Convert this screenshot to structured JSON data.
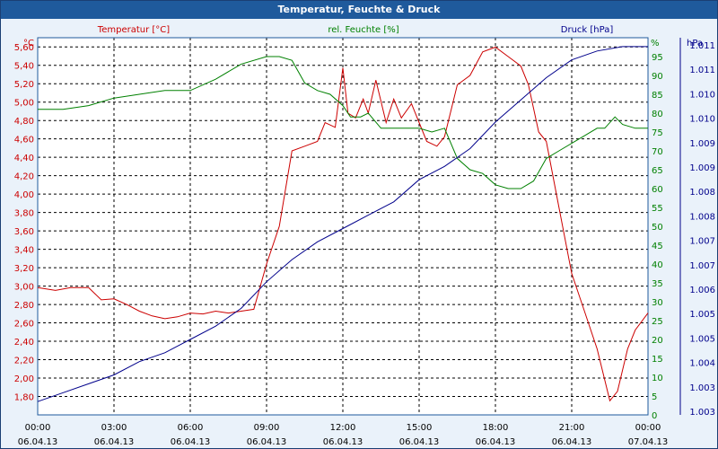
{
  "window": {
    "title": "Temperatur, Feuchte & Druck"
  },
  "chart_data": {
    "type": "line",
    "title": "Temperatur, Feuchte & Druck",
    "colors": {
      "temperature": "#cc0000",
      "humidity": "#008000",
      "pressure": "#00008b",
      "background": "#ffffff",
      "grid": "#000000",
      "frame": "#1f5a9c"
    },
    "grid": "dashed",
    "x_ticks": [
      {
        "time": "00:00",
        "date": "06.04.13"
      },
      {
        "time": "03:00",
        "date": "06.04.13"
      },
      {
        "time": "06:00",
        "date": "06.04.13"
      },
      {
        "time": "09:00",
        "date": "06.04.13"
      },
      {
        "time": "12:00",
        "date": "06.04.13"
      },
      {
        "time": "15:00",
        "date": "06.04.13"
      },
      {
        "time": "18:00",
        "date": "06.04.13"
      },
      {
        "time": "21:00",
        "date": "06.04.13"
      },
      {
        "time": "00:00",
        "date": "07.04.13"
      }
    ],
    "x_range_hours": [
      0,
      24
    ],
    "axes": {
      "temperature": {
        "label": "Temperatur [°C]",
        "unit": "°C",
        "ylim": [
          1.7,
          5.7
        ],
        "ticks": [
          "1,80",
          "2,00",
          "2,20",
          "2,40",
          "2,60",
          "2,80",
          "3,00",
          "3,20",
          "3,40",
          "3,60",
          "3,80",
          "4,00",
          "4,20",
          "4,40",
          "4,60",
          "4,80",
          "5,00",
          "5,20",
          "5,40",
          "5,60"
        ]
      },
      "humidity": {
        "label": "rel. Feuchte [%]",
        "unit": "%",
        "ylim": [
          0,
          100
        ],
        "ticks": [
          "0",
          "5",
          "10",
          "15",
          "20",
          "25",
          "30",
          "35",
          "40",
          "45",
          "50",
          "55",
          "60",
          "65",
          "70",
          "75",
          "80",
          "85",
          "90",
          "95"
        ]
      },
      "pressure": {
        "label": "Druck [hPa]",
        "unit": "hPa",
        "ylim": [
          1.0028,
          1.0113
        ],
        "ticks": [
          "1.003",
          "1.003",
          "1.004",
          "1.005",
          "1.005",
          "1.006",
          "1.007",
          "1.007",
          "1.008",
          "1.008",
          "1.009",
          "1.009",
          "1.010",
          "1.010",
          "1.011",
          "1.011"
        ]
      }
    },
    "series": [
      {
        "name": "Temperatur [°C]",
        "axis": "temperature",
        "x": [
          0,
          0.7,
          1.3,
          2,
          2.5,
          3,
          3.5,
          4,
          4.5,
          5,
          5.5,
          6,
          6.5,
          7,
          7.5,
          8,
          8.5,
          9,
          9.5,
          10,
          10.5,
          11,
          11.3,
          11.7,
          12,
          12.2,
          12.5,
          12.8,
          13,
          13.3,
          13.7,
          14,
          14.3,
          14.7,
          15,
          15.3,
          15.7,
          16,
          16.5,
          17,
          17.5,
          18,
          18.5,
          19,
          19.3,
          19.7,
          20,
          20.5,
          21,
          21.5,
          22,
          22.5,
          22.8,
          23.2,
          23.5,
          24
        ],
        "y": [
          3.05,
          3.02,
          3.05,
          3.05,
          2.92,
          2.93,
          2.87,
          2.8,
          2.75,
          2.72,
          2.74,
          2.78,
          2.77,
          2.8,
          2.78,
          2.8,
          2.82,
          3.3,
          3.7,
          4.5,
          4.55,
          4.6,
          4.8,
          4.75,
          5.38,
          4.9,
          4.85,
          5.05,
          4.9,
          5.25,
          4.8,
          5.05,
          4.85,
          5.0,
          4.8,
          4.6,
          4.55,
          4.65,
          5.2,
          5.3,
          5.55,
          5.6,
          5.5,
          5.4,
          5.2,
          4.7,
          4.6,
          3.9,
          3.2,
          2.8,
          2.4,
          1.85,
          1.95,
          2.4,
          2.6,
          2.78
        ]
      },
      {
        "name": "rel. Feuchte [%]",
        "axis": "humidity",
        "x": [
          0,
          1,
          2,
          3,
          4,
          5,
          6,
          7,
          8,
          9,
          9.5,
          10,
          10.5,
          11,
          11.5,
          12,
          12.3,
          12.7,
          13,
          13.5,
          14,
          14.5,
          15,
          15.5,
          16,
          16.5,
          17,
          17.5,
          18,
          18.5,
          19,
          19.5,
          20,
          20.5,
          21,
          21.5,
          22,
          22.3,
          22.7,
          23,
          23.5,
          24
        ],
        "y": [
          81,
          81,
          82,
          84,
          85,
          86,
          86,
          89,
          93,
          95,
          95,
          94,
          88,
          86,
          85,
          82,
          79,
          79,
          80,
          76,
          76,
          76,
          76,
          75,
          76,
          68,
          65,
          64,
          61,
          60,
          60,
          62,
          68,
          70,
          72,
          74,
          76,
          76,
          79,
          77,
          76,
          76
        ]
      },
      {
        "name": "Druck [hPa]",
        "axis": "pressure",
        "x": [
          0,
          1,
          2,
          3,
          4,
          5,
          6,
          7,
          8,
          9,
          10,
          11,
          12,
          13,
          14,
          15,
          16,
          17,
          18,
          19,
          20,
          21,
          22,
          23,
          24
        ],
        "y": [
          1.0031,
          1.0033,
          1.0035,
          1.0037,
          1.004,
          1.0042,
          1.0045,
          1.0048,
          1.0052,
          1.0058,
          1.0063,
          1.0067,
          1.007,
          1.0073,
          1.0076,
          1.0081,
          1.0084,
          1.0088,
          1.0094,
          1.0099,
          1.0104,
          1.0108,
          1.011,
          1.0111,
          1.0111
        ]
      }
    ]
  }
}
